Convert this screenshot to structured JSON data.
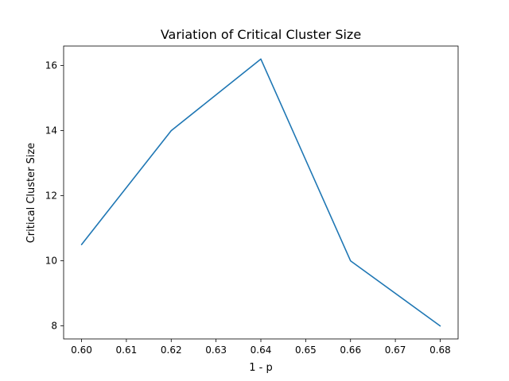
{
  "chart_data": {
    "type": "line",
    "title": "Variation of Critical Cluster Size",
    "xlabel": "1 - p",
    "ylabel": "Critical Cluster Size",
    "x": [
      0.6,
      0.62,
      0.64,
      0.66,
      0.68
    ],
    "series": [
      {
        "values": [
          10.5,
          14.0,
          16.2,
          10.0,
          8.0
        ],
        "color": "#1f77b4"
      }
    ],
    "xlim": [
      0.596,
      0.684
    ],
    "ylim": [
      7.6,
      16.6
    ],
    "xticks": [
      0.6,
      0.61,
      0.62,
      0.63,
      0.64,
      0.65,
      0.66,
      0.67,
      0.68
    ],
    "xtick_labels": [
      "0.60",
      "0.61",
      "0.62",
      "0.63",
      "0.64",
      "0.65",
      "0.66",
      "0.67",
      "0.68"
    ],
    "yticks": [
      8,
      10,
      12,
      14,
      16
    ],
    "ytick_labels": [
      "8",
      "10",
      "12",
      "14",
      "16"
    ],
    "grid": false,
    "legend": "none"
  }
}
